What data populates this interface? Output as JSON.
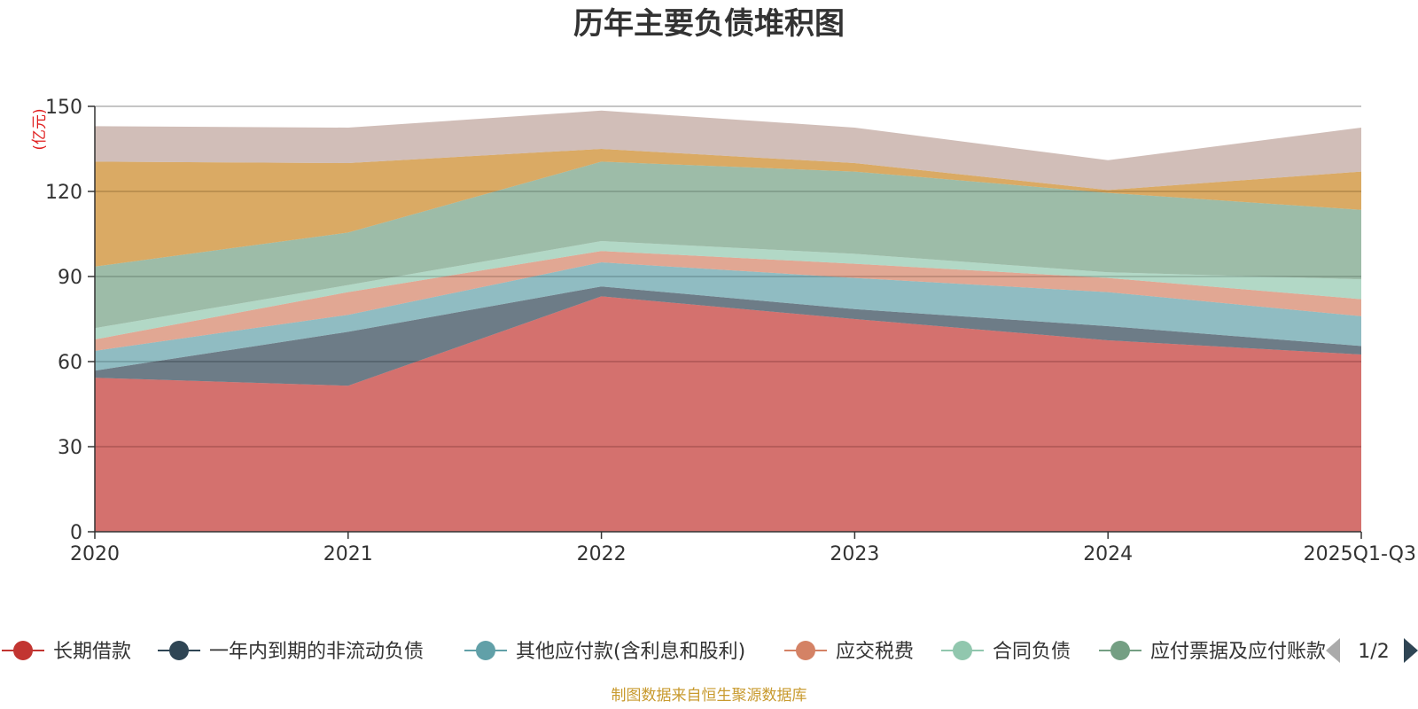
{
  "chart_data": {
    "type": "area",
    "stacked": true,
    "title": "历年主要负债堆积图",
    "ylabel": "(亿元)",
    "xlabel": "",
    "ylim": [
      0,
      150
    ],
    "yticks": [
      0,
      30,
      60,
      90,
      120,
      150
    ],
    "categories": [
      "2020",
      "2021",
      "2022",
      "2023",
      "2024",
      "2025Q1-Q3"
    ],
    "grid": true,
    "legend_position": "bottom",
    "series": [
      {
        "name": "长期借款",
        "color": "#c23531",
        "values": [
          54.3,
          51.5,
          83.0,
          75.0,
          67.5,
          62.5
        ]
      },
      {
        "name": "一年内到期的非流动负债",
        "color": "#2f4554",
        "values": [
          2.5,
          19.0,
          3.5,
          3.5,
          5.0,
          3.0
        ]
      },
      {
        "name": "其他应付款(含利息和股利)",
        "color": "#61a0a8",
        "values": [
          7.0,
          6.0,
          8.5,
          11.0,
          12.0,
          10.5
        ]
      },
      {
        "name": "应交税费",
        "color": "#d48265",
        "values": [
          4.0,
          8.0,
          4.0,
          5.0,
          5.0,
          6.0
        ]
      },
      {
        "name": "合同负债",
        "color": "#91c7ae",
        "values": [
          4.0,
          2.5,
          3.5,
          3.5,
          2.0,
          7.0
        ]
      },
      {
        "name": "应付票据及应付账款",
        "color": "#749f83",
        "values": [
          21.7,
          18.5,
          28.0,
          29.0,
          28.0,
          24.5
        ]
      },
      {
        "name": "",
        "color": "#ca8622",
        "values": [
          37.0,
          24.5,
          4.5,
          3.0,
          1.0,
          13.5
        ]
      },
      {
        "name": "",
        "color": "#bda29a",
        "values": [
          12.5,
          12.5,
          13.5,
          12.5,
          10.5,
          15.5
        ]
      }
    ],
    "legend_visible_count": 6,
    "legend_pager": "1/2",
    "source": "制图数据来自恒生聚源数据库"
  }
}
